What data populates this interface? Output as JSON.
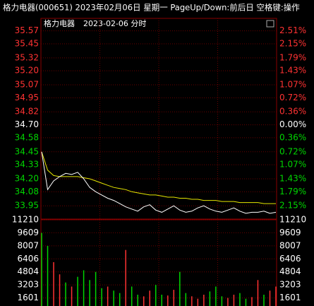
{
  "header": {
    "title": "格力电器(000651) 2023年02月06日 星期一 PageUp/Down:前后日 空格键:操作"
  },
  "chart_data": {
    "type": "intraday",
    "title": "格力电器",
    "subtitle": "2023-02-06 分时",
    "up_color": "#ff3232",
    "down_color": "#00d600",
    "flat_color": "#ffffff",
    "ylim": [
      33.84,
      35.62
    ],
    "yticks": [
      {
        "value": 35.57,
        "label": "35.57"
      },
      {
        "value": 35.45,
        "label": "35.45"
      },
      {
        "value": 35.32,
        "label": "35.32"
      },
      {
        "value": 35.2,
        "label": "35.20"
      },
      {
        "value": 35.07,
        "label": "35.07"
      },
      {
        "value": 34.95,
        "label": "34.95"
      },
      {
        "value": 34.82,
        "label": "34.82"
      },
      {
        "value": 34.7,
        "label": "34.70"
      },
      {
        "value": 34.58,
        "label": "34.58"
      },
      {
        "value": 34.45,
        "label": "34.45"
      },
      {
        "value": 34.33,
        "label": "34.33"
      },
      {
        "value": 34.2,
        "label": "34.20"
      },
      {
        "value": 34.08,
        "label": "34.08"
      },
      {
        "value": 33.95,
        "label": "33.95"
      }
    ],
    "y2ticks": [
      {
        "value": 2.51,
        "label": "2.51%"
      },
      {
        "value": 2.15,
        "label": "2.15%"
      },
      {
        "value": 1.79,
        "label": "1.79%"
      },
      {
        "value": 1.43,
        "label": "1.43%"
      },
      {
        "value": 1.07,
        "label": "1.07%"
      },
      {
        "value": 0.72,
        "label": "0.72%"
      },
      {
        "value": 0.36,
        "label": "0.36%"
      },
      {
        "value": 0,
        "label": "0.00%"
      },
      {
        "value": -0.36,
        "label": "0.36%"
      },
      {
        "value": -0.72,
        "label": "0.72%"
      },
      {
        "value": -1.07,
        "label": "1.07%"
      },
      {
        "value": -1.43,
        "label": "1.43%"
      },
      {
        "value": -1.79,
        "label": "1.79%"
      },
      {
        "value": -2.15,
        "label": "2.15%"
      }
    ],
    "series": [
      {
        "color": "#ffffff",
        "values": [
          34.45,
          34.1,
          34.18,
          34.22,
          34.25,
          34.24,
          34.26,
          34.2,
          34.12,
          34.08,
          34.05,
          34.02,
          34.0,
          33.97,
          33.94,
          33.92,
          33.9,
          33.94,
          33.96,
          33.91,
          33.89,
          33.92,
          33.95,
          33.91,
          33.89,
          33.9,
          33.93,
          33.95,
          33.92,
          33.9,
          33.89,
          33.91,
          33.93,
          33.9,
          33.88,
          33.89,
          33.89,
          33.9,
          33.88,
          33.89
        ]
      },
      {
        "color": "#e6e600",
        "values": [
          34.45,
          34.28,
          34.23,
          34.22,
          34.22,
          34.22,
          34.22,
          34.21,
          34.2,
          34.18,
          34.16,
          34.14,
          34.12,
          34.11,
          34.1,
          34.08,
          34.07,
          34.06,
          34.05,
          34.05,
          34.04,
          34.03,
          34.03,
          34.02,
          34.02,
          34.01,
          34.01,
          34.0,
          34.0,
          34.0,
          33.99,
          33.99,
          33.99,
          33.98,
          33.98,
          33.98,
          33.98,
          33.97,
          33.97,
          33.97
        ]
      }
    ],
    "volume": {
      "ylim": [
        0,
        11210
      ],
      "yticks": [
        11210,
        9609,
        8007,
        6406,
        4804,
        3203,
        1601
      ],
      "values": [
        9600,
        8000,
        6000,
        4500,
        3500,
        3000,
        4200,
        5000,
        3800,
        4800,
        2800,
        3000,
        2500,
        2200,
        7500,
        3000,
        2000,
        1800,
        2500,
        3200,
        2000,
        1900,
        2600,
        4800,
        2200,
        1800,
        1500,
        2000,
        2400,
        3000,
        1800,
        1600,
        2000,
        2200,
        1500,
        1700,
        3800,
        2000,
        2500,
        3000
      ],
      "colors": [
        "#00d600",
        "#00d600",
        "#ff3232",
        "#ff3232",
        "#00d600",
        "#ff3232",
        "#00d600",
        "#00d600",
        "#00d600",
        "#00d600",
        "#00d600",
        "#ff3232",
        "#00d600",
        "#00d600",
        "#ff3232",
        "#00d600",
        "#00d600",
        "#ff3232",
        "#ff3232",
        "#00d600",
        "#00d600",
        "#ff3232",
        "#ff3232",
        "#00d600",
        "#00d600",
        "#ff3232",
        "#ff3232",
        "#ff3232",
        "#00d600",
        "#00d600",
        "#00d600",
        "#ff3232",
        "#ff3232",
        "#00d600",
        "#00d600",
        "#ff3232",
        "#ff3232",
        "#00d600",
        "#ff3232",
        "#ff3232"
      ]
    }
  }
}
